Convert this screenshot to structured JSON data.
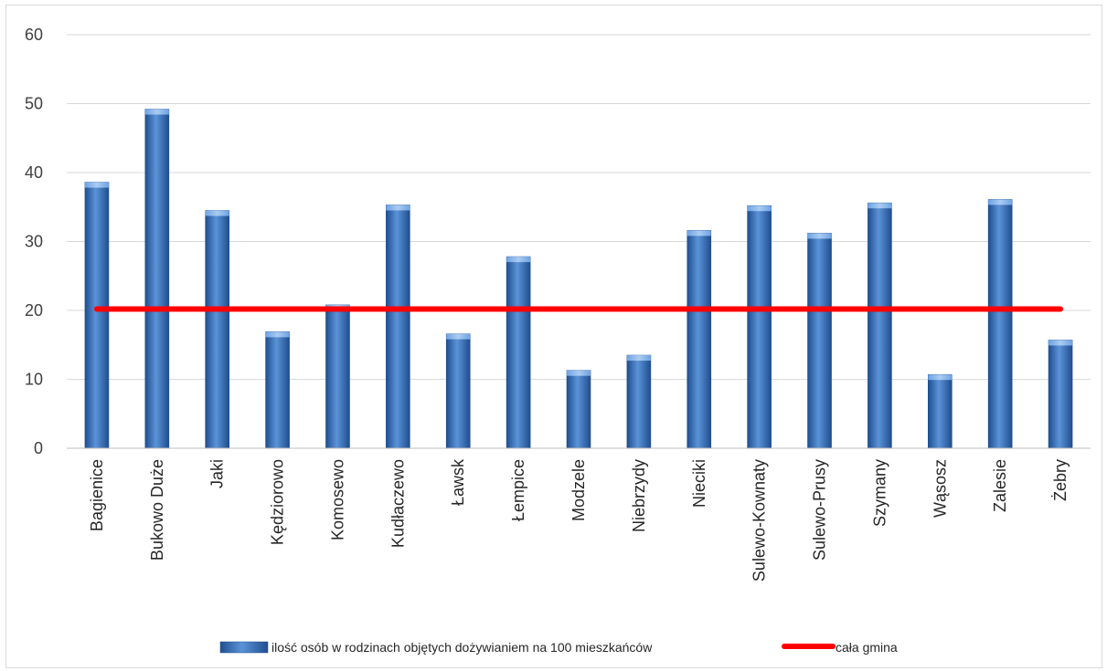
{
  "chart_data": {
    "type": "bar",
    "categories": [
      "Bagienice",
      "Bukowo Duże",
      "Jaki",
      "Kędziorowo",
      "Komosewo",
      "Kudłaczewo",
      "Ławsk",
      "Łempice",
      "Modzele",
      "Niebrzydy",
      "Nieciki",
      "Sulewo-Kownaty",
      "Sulewo-Prusy",
      "Szymany",
      "Wąsosz",
      "Zalesie",
      "Żebry"
    ],
    "series": [
      {
        "name": "ilość osób w rodzinach objętych dożywianiem na 100 mieszkańców",
        "type": "bar",
        "values": [
          38.6,
          49.2,
          34.5,
          16.9,
          20.8,
          35.3,
          16.6,
          27.8,
          11.3,
          13.5,
          31.6,
          35.2,
          31.2,
          35.6,
          10.7,
          36.1,
          15.7
        ]
      },
      {
        "name": "cała gmina",
        "type": "line",
        "values": [
          20.2,
          20.2,
          20.2,
          20.2,
          20.2,
          20.2,
          20.2,
          20.2,
          20.2,
          20.2,
          20.2,
          20.2,
          20.2,
          20.2,
          20.2,
          20.2,
          20.2
        ]
      }
    ],
    "yticks": [
      "0",
      "10",
      "20",
      "30",
      "40",
      "50",
      "60"
    ],
    "ylim": [
      0,
      60
    ],
    "grid": true,
    "legend_position": "bottom",
    "colors": {
      "bar": "#2e6db5",
      "bar_light": "#5b93d8",
      "line": "#ff0000",
      "grid": "#d9d9d9",
      "axis": "#bfbfbf"
    }
  }
}
